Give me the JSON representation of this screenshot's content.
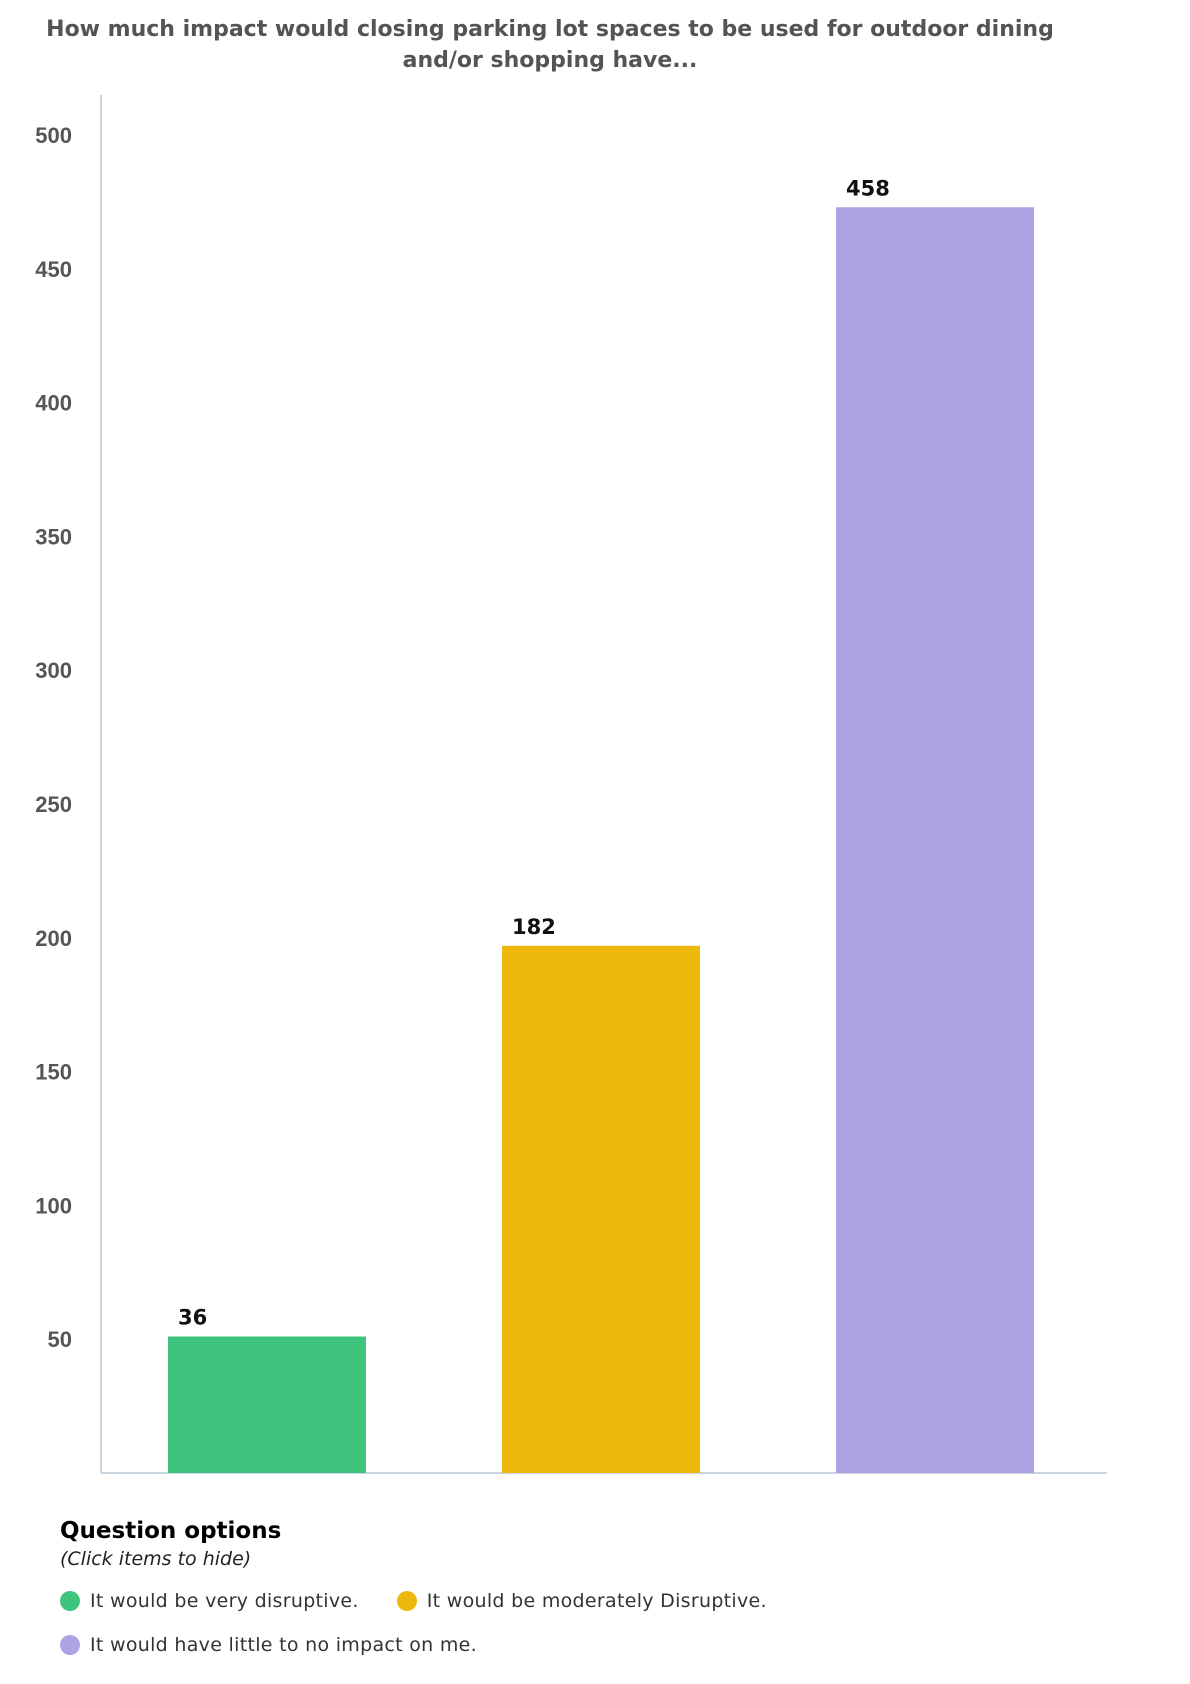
{
  "chart_data": {
    "type": "bar",
    "title": "How much impact would closing parking lot spaces to be used for outdoor dining and/or shopping have...",
    "categories": [
      "It would be very disruptive.",
      "It would be moderately Disruptive.",
      "It would have little to no impact on me."
    ],
    "values": [
      36,
      182,
      458
    ],
    "colors": [
      "#3fc47e",
      "#efb80c",
      "#aca3e4"
    ],
    "yticks": [
      "50",
      "100",
      "150",
      "200",
      "250",
      "300",
      "350",
      "400",
      "450",
      "500"
    ],
    "ylim": [
      0,
      500
    ],
    "xlabel": "",
    "ylabel": "",
    "grid": false,
    "legend_placement": "bottom-left"
  },
  "legend": {
    "title": "Question options",
    "subtitle": "(Click items to hide)",
    "items": [
      {
        "label": "It would be very disruptive.",
        "color": "#3fc47e"
      },
      {
        "label": "It would be moderately Disruptive.",
        "color": "#efb80c"
      },
      {
        "label": "It would have little to no impact on me.",
        "color": "#aca3e4"
      }
    ]
  }
}
